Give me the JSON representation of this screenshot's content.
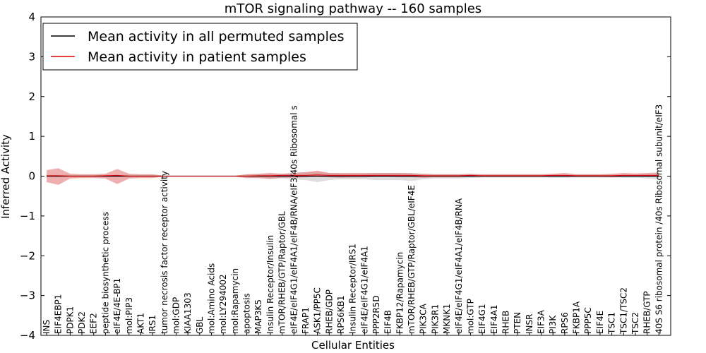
{
  "chart_data": {
    "type": "line",
    "title": "mTOR signaling pathway -- 160 samples",
    "xlabel": "Cellular Entities",
    "ylabel": "Inferred Activity",
    "ylim": [
      -4,
      4
    ],
    "yticks": [
      -4,
      -3,
      -2,
      -1,
      0,
      1,
      2,
      3,
      4
    ],
    "ytick_labels": [
      "−4",
      "−3",
      "−2",
      "−1",
      "0",
      "1",
      "2",
      "3",
      "4"
    ],
    "categories": [
      "INS",
      "EIF4EBP1",
      "PDPK1",
      "PDK2",
      "EEF2",
      "peptide biosynthetic process",
      "eIF4E/4E-BP1",
      "mol:PIP3",
      "AKT1",
      "IRS1",
      "tumor necrosis factor receptor activity",
      "mol:GDP",
      "KIAA1303",
      "GBL",
      "mol:Amino Acids",
      "mol:LY294002",
      "mol:Rapamycin",
      "apoptosis",
      "MAP3K5",
      "Insulin Receptor/Insulin",
      "mTOR/RHEB/GTP/Raptor/GBL",
      "eIF4E/eIF4G1/eIF4A1/eIF4B/RNA/eIF3/40s Ribosomal s",
      "FRAP1",
      "ASK1/PP5C",
      "RHEB/GDP",
      "RPS6KB1",
      "Insulin Receptor/IRS1",
      "eIF4E/eIF4G1/eIF4A1",
      "PPP2R5D",
      "EIF4B",
      "FKBP12/Rapamycin",
      "mTOR/RHEB/GTP/Raptor/GBL/eIF4E",
      "PIK3CA",
      "PIK3R1",
      "MKNK1",
      "eIF4E/eIF4G1/eIF4A1/eIF4B/RNA",
      "mol:GTP",
      "EIF4G1",
      "EIF4A1",
      "RHEB",
      "PTEN",
      "INSR",
      "EIF3A",
      "PI3K",
      "RPS6",
      "FKBP1A",
      "PPP5C",
      "EIF4E",
      "TSC1",
      "TSC1/TSC2",
      "TSC2",
      "RHEB/GTP",
      "40S S6 ribosomal protein /40s Ribosomal subunit/eIF3"
    ],
    "series": [
      {
        "name": "Mean activity in all permuted samples",
        "color": "#000000",
        "values": [
          0,
          0,
          0,
          0,
          0,
          0,
          0,
          0,
          0,
          0,
          0,
          0,
          0,
          0,
          0,
          0,
          0,
          0,
          0,
          0,
          0,
          0,
          0,
          0,
          0,
          0,
          0,
          0,
          0,
          0,
          0,
          0,
          0,
          0,
          0,
          0,
          0,
          0,
          0,
          0,
          0,
          0,
          0,
          0,
          0,
          0,
          0,
          0,
          0,
          0,
          0,
          0,
          0
        ],
        "band_low": [
          -0.03,
          -0.03,
          -0.03,
          -0.03,
          -0.03,
          -0.03,
          -0.03,
          -0.03,
          -0.03,
          -0.03,
          -0.01,
          -0.01,
          -0.01,
          -0.01,
          -0.01,
          -0.01,
          -0.01,
          -0.04,
          -0.05,
          -0.06,
          -0.06,
          -0.08,
          -0.1,
          -0.15,
          -0.1,
          -0.08,
          -0.08,
          -0.08,
          -0.1,
          -0.1,
          -0.1,
          -0.12,
          -0.08,
          -0.06,
          -0.06,
          -0.06,
          -0.05,
          -0.04,
          -0.04,
          -0.04,
          -0.04,
          -0.04,
          -0.04,
          -0.04,
          -0.04,
          -0.04,
          -0.04,
          -0.04,
          -0.04,
          -0.04,
          -0.04,
          -0.06,
          -0.08
        ],
        "band_high": [
          0.03,
          0.03,
          0.03,
          0.03,
          0.03,
          0.03,
          0.03,
          0.03,
          0.03,
          0.03,
          0.01,
          0.01,
          0.01,
          0.01,
          0.01,
          0.01,
          0.01,
          0.04,
          0.05,
          0.06,
          0.06,
          0.08,
          0.1,
          0.1,
          0.08,
          0.06,
          0.06,
          0.06,
          0.08,
          0.08,
          0.08,
          0.08,
          0.06,
          0.05,
          0.05,
          0.05,
          0.05,
          0.04,
          0.04,
          0.04,
          0.04,
          0.04,
          0.04,
          0.04,
          0.04,
          0.04,
          0.04,
          0.04,
          0.04,
          0.04,
          0.04,
          0.05,
          0.06
        ],
        "band_color": "#c8c8c8"
      },
      {
        "name": "Mean activity in patient samples",
        "color": "#e00000",
        "values": [
          0.01,
          0.01,
          0.0,
          0.0,
          0.0,
          0.01,
          0.02,
          0.0,
          0.0,
          0.0,
          0.0,
          0.0,
          0.0,
          0.0,
          0.0,
          0.0,
          0.0,
          0.0,
          0.01,
          0.01,
          0.02,
          0.02,
          0.02,
          0.03,
          0.02,
          0.02,
          0.02,
          0.02,
          0.02,
          0.02,
          0.02,
          0.02,
          0.01,
          0.01,
          0.01,
          0.01,
          0.02,
          0.01,
          0.01,
          0.01,
          0.01,
          0.01,
          0.01,
          0.02,
          0.02,
          0.01,
          0.01,
          0.01,
          0.01,
          0.02,
          0.02,
          0.02,
          0.02
        ],
        "band_low": [
          -0.15,
          -0.22,
          -0.06,
          -0.05,
          -0.05,
          -0.06,
          -0.2,
          -0.06,
          -0.05,
          -0.05,
          -0.01,
          -0.01,
          -0.01,
          -0.01,
          -0.01,
          -0.01,
          -0.01,
          -0.05,
          -0.05,
          -0.07,
          -0.04,
          -0.04,
          -0.03,
          -0.02,
          -0.03,
          -0.04,
          -0.03,
          -0.03,
          -0.02,
          -0.02,
          -0.03,
          -0.03,
          -0.04,
          -0.03,
          -0.03,
          -0.03,
          -0.02,
          -0.02,
          -0.02,
          -0.02,
          -0.02,
          -0.02,
          -0.02,
          -0.02,
          -0.02,
          -0.02,
          -0.02,
          -0.02,
          -0.03,
          -0.02,
          -0.02,
          -0.02,
          -0.02
        ],
        "band_high": [
          0.15,
          0.2,
          0.06,
          0.05,
          0.05,
          0.06,
          0.18,
          0.06,
          0.05,
          0.05,
          0.01,
          0.01,
          0.01,
          0.01,
          0.01,
          0.01,
          0.01,
          0.05,
          0.06,
          0.08,
          0.06,
          0.08,
          0.1,
          0.14,
          0.08,
          0.08,
          0.08,
          0.08,
          0.08,
          0.08,
          0.08,
          0.07,
          0.06,
          0.05,
          0.05,
          0.05,
          0.06,
          0.05,
          0.05,
          0.05,
          0.05,
          0.05,
          0.05,
          0.06,
          0.08,
          0.05,
          0.05,
          0.05,
          0.06,
          0.08,
          0.07,
          0.08,
          0.09
        ],
        "band_color": "#e06060"
      }
    ],
    "legend_position": "top-left",
    "grid": false
  }
}
